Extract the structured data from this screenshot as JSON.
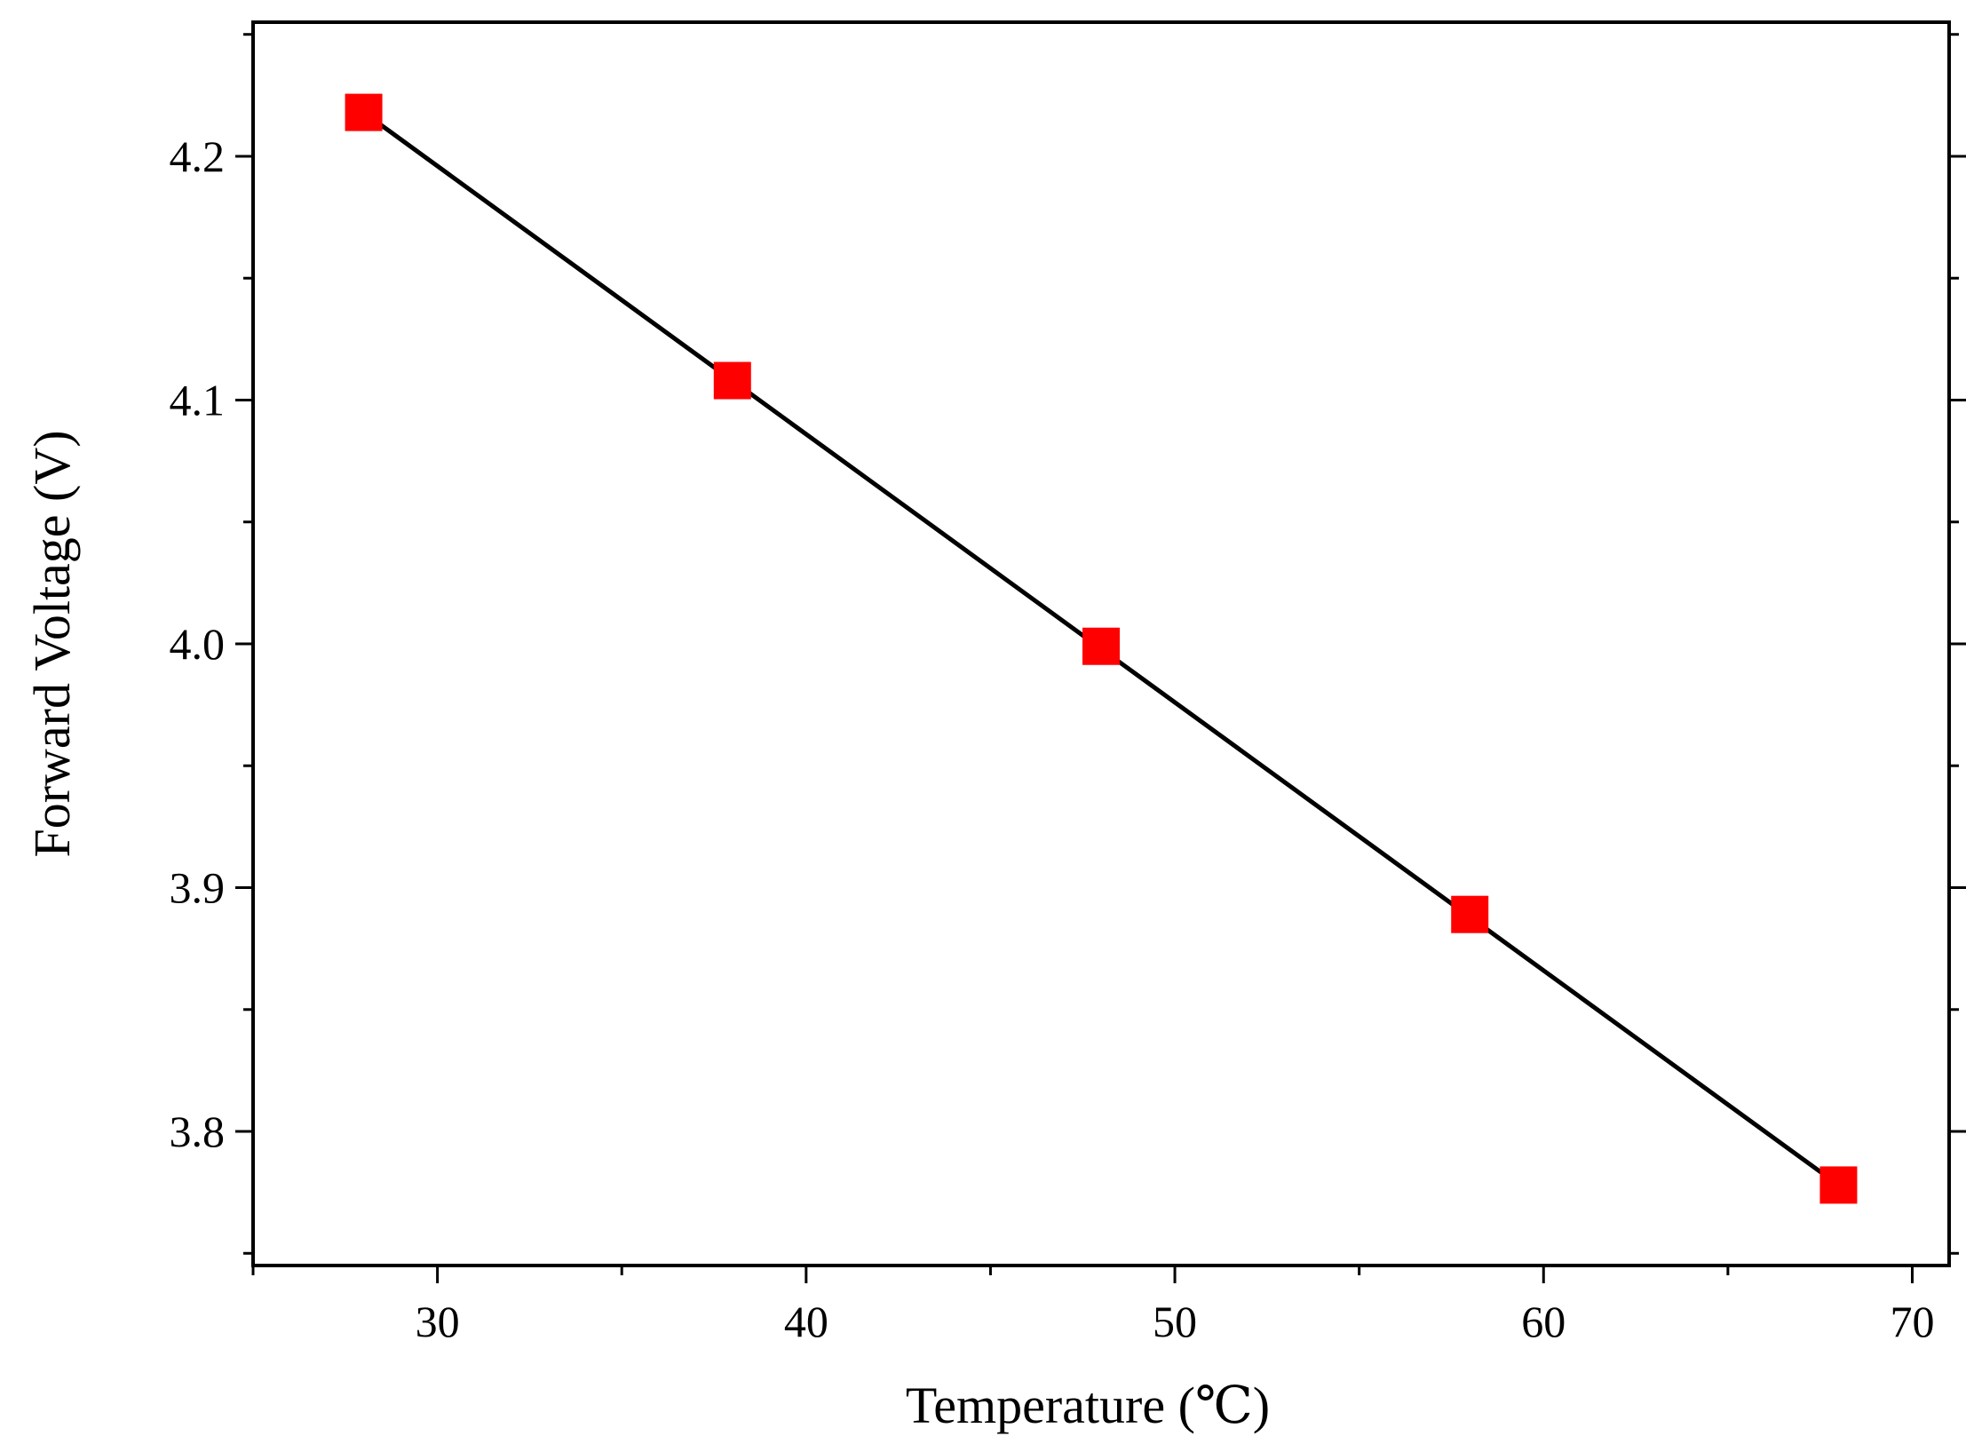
{
  "chart_data": {
    "type": "scatter",
    "xlabel": "Temperature (℃)",
    "ylabel": "Forward Voltage (V)",
    "xlim": [
      25,
      71
    ],
    "ylim": [
      3.745,
      4.255
    ],
    "x_ticks": [
      30,
      40,
      50,
      60,
      70
    ],
    "x_tick_labels": [
      "30",
      "40",
      "50",
      "60",
      "70"
    ],
    "x_minor_ticks": [
      25,
      35,
      45,
      55,
      65
    ],
    "y_ticks": [
      3.8,
      3.9,
      4.0,
      4.1,
      4.2
    ],
    "y_tick_labels": [
      "3.8",
      "3.9",
      "4.0",
      "4.1",
      "4.2"
    ],
    "y_minor_ticks": [
      3.75,
      3.85,
      3.95,
      4.05,
      4.15,
      4.25
    ],
    "grid": false,
    "series": [
      {
        "marker": "square",
        "color": "#ff0000",
        "x": [
          28,
          38,
          48,
          58,
          68
        ],
        "y": [
          4.218,
          4.108,
          3.999,
          3.889,
          3.778
        ]
      }
    ],
    "fit_line": {
      "color": "#000000",
      "x": [
        28,
        68
      ],
      "y": [
        4.218,
        3.778
      ]
    }
  }
}
